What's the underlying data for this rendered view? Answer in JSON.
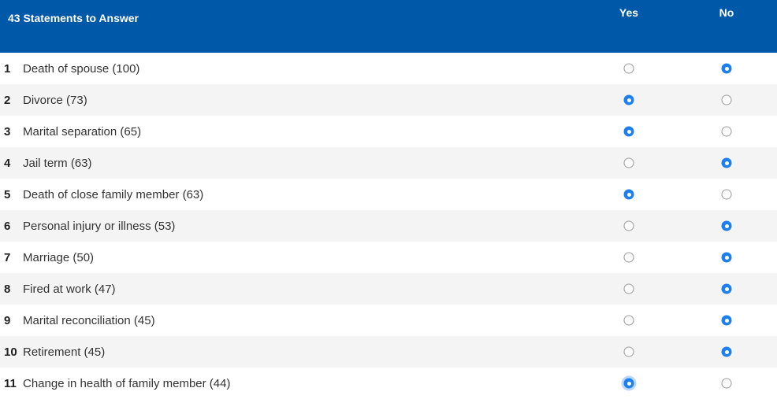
{
  "header": {
    "title": "43 Statements to Answer",
    "yes_label": "Yes",
    "no_label": "No"
  },
  "colors": {
    "header_bg": "#0059a8",
    "radio_checked": "#1e7ff0"
  },
  "rows": [
    {
      "num": "1",
      "label": "Death of spouse (100)",
      "answer": "no"
    },
    {
      "num": "2",
      "label": "Divorce (73)",
      "answer": "yes"
    },
    {
      "num": "3",
      "label": "Marital separation (65)",
      "answer": "yes"
    },
    {
      "num": "4",
      "label": "Jail term (63)",
      "answer": "no"
    },
    {
      "num": "5",
      "label": "Death of close family member (63)",
      "answer": "yes"
    },
    {
      "num": "6",
      "label": "Personal injury or illness (53)",
      "answer": "no"
    },
    {
      "num": "7",
      "label": "Marriage (50)",
      "answer": "no"
    },
    {
      "num": "8",
      "label": "Fired at work (47)",
      "answer": "no"
    },
    {
      "num": "9",
      "label": "Marital reconciliation (45)",
      "answer": "no"
    },
    {
      "num": "10",
      "label": "Retirement (45)",
      "answer": "no"
    },
    {
      "num": "11",
      "label": "Change in health of family member (44)",
      "answer": "yes",
      "focused": true
    }
  ]
}
